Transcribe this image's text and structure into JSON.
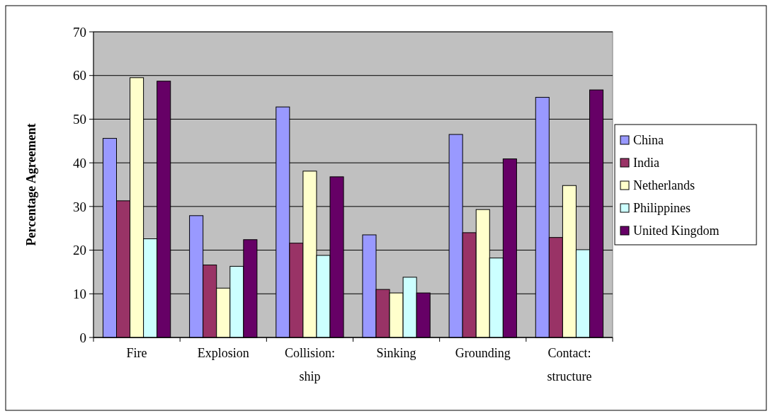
{
  "chart_data": {
    "type": "bar",
    "ylabel": "Percentage Agreement",
    "categories": [
      "Fire",
      "Explosion",
      "Collision: ship",
      "Sinking",
      "Grounding",
      "Contact: structure"
    ],
    "series": [
      {
        "name": "China",
        "color": "#9999ff",
        "values": [
          45.6,
          27.9,
          52.8,
          23.5,
          46.5,
          55.0
        ]
      },
      {
        "name": "India",
        "color": "#993366",
        "values": [
          31.3,
          16.6,
          21.6,
          11.0,
          24.0,
          22.9
        ]
      },
      {
        "name": "Netherlands",
        "color": "#ffffcc",
        "values": [
          59.5,
          11.3,
          38.1,
          10.2,
          29.3,
          34.8
        ]
      },
      {
        "name": "Philippines",
        "color": "#ccffff",
        "values": [
          22.6,
          16.3,
          18.8,
          13.8,
          18.2,
          20.1
        ]
      },
      {
        "name": "United Kingdom",
        "color": "#660066",
        "values": [
          58.7,
          22.4,
          36.8,
          10.2,
          40.9,
          56.7
        ]
      }
    ],
    "ylim": [
      0,
      70
    ],
    "yticks": [
      0,
      10,
      20,
      30,
      40,
      50,
      60,
      70
    ],
    "grid": "y",
    "legend": "right"
  }
}
